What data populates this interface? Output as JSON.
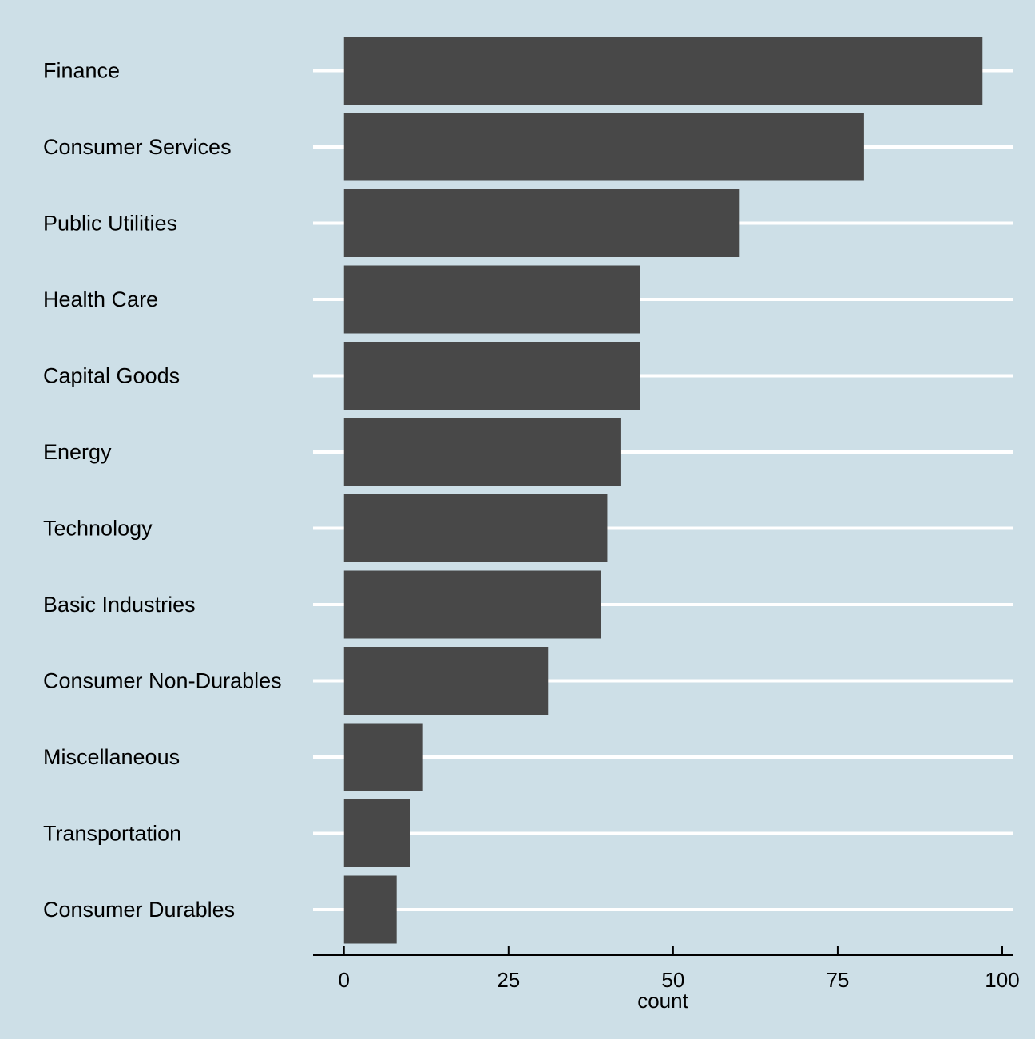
{
  "chart_data": {
    "type": "bar",
    "orientation": "horizontal",
    "categories": [
      "Finance",
      "Consumer Services",
      "Public Utilities",
      "Health Care",
      "Capital Goods",
      "Energy",
      "Technology",
      "Basic Industries",
      "Consumer Non-Durables",
      "Miscellaneous",
      "Transportation",
      "Consumer Durables"
    ],
    "values": [
      97,
      79,
      60,
      45,
      45,
      42,
      40,
      39,
      31,
      12,
      10,
      8
    ],
    "title": "",
    "xlabel": "count",
    "ylabel": "",
    "xlim": [
      -4.7,
      101.7
    ],
    "xticks": [
      0,
      25,
      50,
      75,
      100
    ],
    "xtick_labels": [
      "0",
      "25",
      "50",
      "75",
      "100"
    ],
    "grid": "horizontal",
    "legend": "none",
    "colors": {
      "background": "#cddfe7",
      "bar": "#484848",
      "grid": "#ffffff",
      "text": "#000000"
    }
  }
}
